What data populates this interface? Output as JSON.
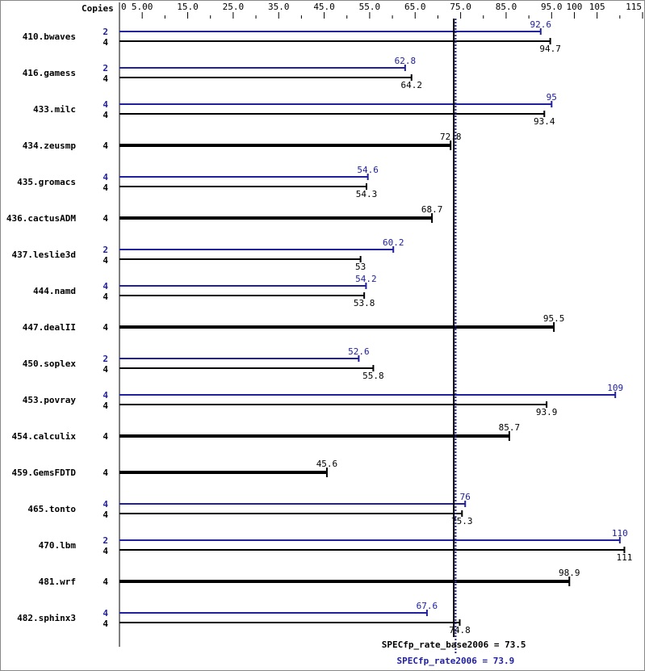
{
  "chart_data": {
    "type": "bar",
    "orientation": "horizontal",
    "copies_header": "Copies",
    "xlim": [
      0,
      115
    ],
    "tick_labels": [
      "0",
      "5.00",
      "15.0",
      "25.0",
      "35.0",
      "45.0",
      "55.0",
      "65.0",
      "75.0",
      "85.0",
      "95.0",
      "100",
      "105",
      "115"
    ],
    "tick_values": [
      0,
      5,
      15,
      25,
      35,
      45,
      55,
      65,
      75,
      85,
      95,
      100,
      105,
      115
    ],
    "minor_ticks": [
      10,
      20,
      30,
      40,
      50,
      60,
      70,
      80,
      90,
      110
    ],
    "colors": {
      "peak": "#2020a0",
      "base": "#000000"
    },
    "benchmarks": [
      {
        "name": "410.bwaves",
        "peak_copies": "2",
        "peak": 92.6,
        "base_copies": "4",
        "base": 94.7
      },
      {
        "name": "416.gamess",
        "peak_copies": "2",
        "peak": 62.8,
        "base_copies": "4",
        "base": 64.2
      },
      {
        "name": "433.milc",
        "peak_copies": "4",
        "peak": 95.0,
        "base_copies": "4",
        "base": 93.4
      },
      {
        "name": "434.zeusmp",
        "base_copies": "4",
        "base": 72.8
      },
      {
        "name": "435.gromacs",
        "peak_copies": "4",
        "peak": 54.6,
        "base_copies": "4",
        "base": 54.3
      },
      {
        "name": "436.cactusADM",
        "base_copies": "4",
        "base": 68.7
      },
      {
        "name": "437.leslie3d",
        "peak_copies": "2",
        "peak": 60.2,
        "base_copies": "4",
        "base": 53.0
      },
      {
        "name": "444.namd",
        "peak_copies": "4",
        "peak": 54.2,
        "base_copies": "4",
        "base": 53.8
      },
      {
        "name": "447.dealII",
        "base_copies": "4",
        "base": 95.5
      },
      {
        "name": "450.soplex",
        "peak_copies": "2",
        "peak": 52.6,
        "base_copies": "4",
        "base": 55.8
      },
      {
        "name": "453.povray",
        "peak_copies": "4",
        "peak": 109,
        "base_copies": "4",
        "base": 93.9
      },
      {
        "name": "454.calculix",
        "base_copies": "4",
        "base": 85.7
      },
      {
        "name": "459.GemsFDTD",
        "base_copies": "4",
        "base": 45.6
      },
      {
        "name": "465.tonto",
        "peak_copies": "4",
        "peak": 76.0,
        "base_copies": "4",
        "base": 75.3
      },
      {
        "name": "470.lbm",
        "peak_copies": "2",
        "peak": 110,
        "base_copies": "4",
        "base": 111
      },
      {
        "name": "481.wrf",
        "base_copies": "4",
        "base": 98.9
      },
      {
        "name": "482.sphinx3",
        "peak_copies": "4",
        "peak": 67.6,
        "base_copies": "4",
        "base": 74.8
      }
    ],
    "base_mean": {
      "label": "SPECfp_rate_base2006 = 73.5",
      "value": 73.5
    },
    "peak_mean": {
      "label": "SPECfp_rate2006 = 73.9",
      "value": 73.9
    }
  }
}
